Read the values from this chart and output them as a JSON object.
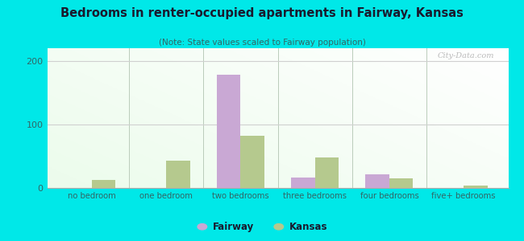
{
  "title": "Bedrooms in renter-occupied apartments in Fairway, Kansas",
  "subtitle": "(Note: State values scaled to Fairway population)",
  "categories": [
    "no bedroom",
    "one bedroom",
    "two bedrooms",
    "three bedrooms",
    "four bedrooms",
    "five+ bedrooms"
  ],
  "fairway_values": [
    0,
    0,
    178,
    17,
    22,
    0
  ],
  "kansas_values": [
    13,
    43,
    82,
    48,
    15,
    4
  ],
  "fairway_color": "#c9a8d4",
  "kansas_color": "#b5c98e",
  "ylim": [
    0,
    220
  ],
  "yticks": [
    0,
    100,
    200
  ],
  "bg_color": "#00e8e8",
  "grid_color": "#d0d0d0",
  "title_color": "#1a1a2e",
  "subtitle_color": "#336666",
  "bar_width": 0.32,
  "watermark": "City-Data.com",
  "tick_label_color": "#336666"
}
